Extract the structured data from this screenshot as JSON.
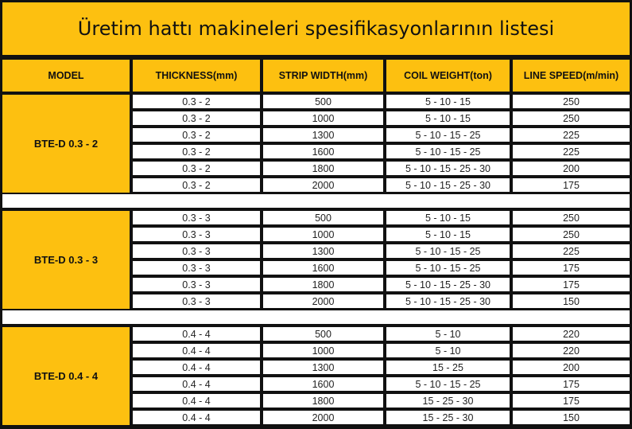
{
  "title": "Üretim hattı makineleri spesifikasyonlarının listesi",
  "headers": [
    "MODEL",
    "THICKNESS(mm)",
    "STRIP WIDTH(mm)",
    "COIL WEIGHT(ton)",
    "LINE SPEED(m/min)"
  ],
  "groups": [
    {
      "model": "BTE-D 0.3 - 2",
      "rows": [
        [
          "0.3 - 2",
          "500",
          "5 - 10 - 15",
          "250"
        ],
        [
          "0.3 - 2",
          "1000",
          "5 - 10 - 15",
          "250"
        ],
        [
          "0.3 - 2",
          "1300",
          "5 - 10 - 15 - 25",
          "225"
        ],
        [
          "0.3 - 2",
          "1600",
          "5 - 10 - 15 - 25",
          "225"
        ],
        [
          "0.3 - 2",
          "1800",
          "5 - 10 - 15 - 25 - 30",
          "200"
        ],
        [
          "0.3 - 2",
          "2000",
          "5 - 10 - 15 - 25 - 30",
          "175"
        ]
      ]
    },
    {
      "model": "BTE-D 0.3 - 3",
      "rows": [
        [
          "0.3 - 3",
          "500",
          "5 - 10 - 15",
          "250"
        ],
        [
          "0.3 - 3",
          "1000",
          "5 - 10 - 15",
          "250"
        ],
        [
          "0.3 - 3",
          "1300",
          "5 - 10 - 15 - 25",
          "225"
        ],
        [
          "0.3 - 3",
          "1600",
          "5 - 10 - 15 - 25",
          "175"
        ],
        [
          "0.3 - 3",
          "1800",
          "5 - 10 - 15 - 25 - 30",
          "175"
        ],
        [
          "0.3 - 3",
          "2000",
          "5 - 10 - 15 - 25 - 30",
          "150"
        ]
      ]
    },
    {
      "model": "BTE-D 0.4 - 4",
      "rows": [
        [
          "0.4 - 4",
          "500",
          "5 - 10",
          "220"
        ],
        [
          "0.4 - 4",
          "1000",
          "5 - 10",
          "220"
        ],
        [
          "0.4 - 4",
          "1300",
          "15 - 25",
          "200"
        ],
        [
          "0.4 - 4",
          "1600",
          "5 - 10 - 15 - 25",
          "175"
        ],
        [
          "0.4 - 4",
          "1800",
          "15 - 25 - 30",
          "175"
        ],
        [
          "0.4 - 4",
          "2000",
          "15 - 25 - 30",
          "150"
        ]
      ]
    }
  ],
  "colors": {
    "header": "#fdc010",
    "grid": "#111111",
    "cell": "#ffffff"
  }
}
